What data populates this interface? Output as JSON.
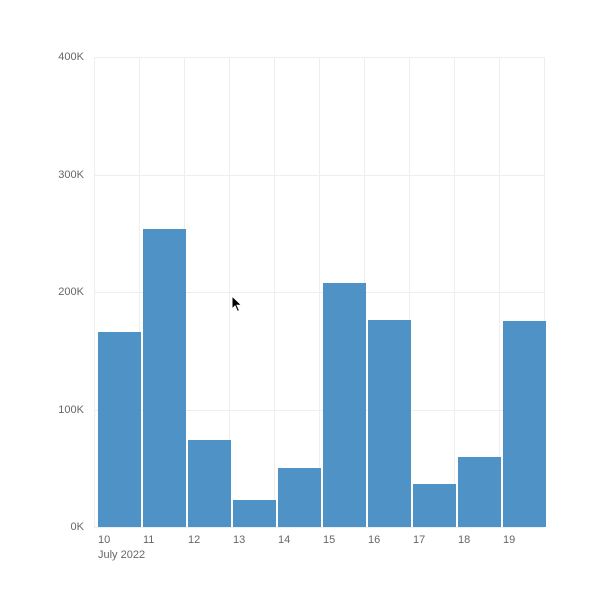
{
  "chart_data": {
    "type": "bar",
    "title": "",
    "xlabel": "July 2022",
    "ylabel": "",
    "categories": [
      "10",
      "11",
      "12",
      "13",
      "14",
      "15",
      "16",
      "17",
      "18",
      "19"
    ],
    "values": [
      166000,
      254000,
      74000,
      23000,
      50000,
      208000,
      176000,
      37000,
      60000,
      175000
    ],
    "ylim": [
      0,
      400000
    ],
    "yticks": [
      "0K",
      "100K",
      "200K",
      "300K",
      "400K"
    ],
    "grid": true,
    "legend": null,
    "bar_color": "#4f92c6"
  },
  "axis": {
    "x_period_label": "July 2022"
  }
}
